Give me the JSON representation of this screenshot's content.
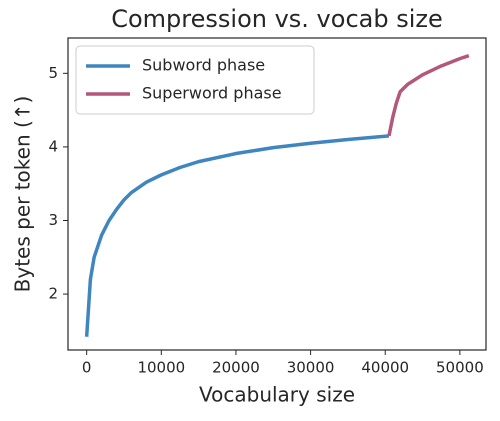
{
  "chart_data": {
    "type": "line",
    "title": "Compression vs. vocab size",
    "x_label": "Vocabulary size",
    "y_label": "Bytes per token (↑)",
    "xlim": [
      -2500,
      53500
    ],
    "ylim": [
      1.24,
      5.48
    ],
    "xticks": [
      0,
      10000,
      20000,
      30000,
      40000,
      50000
    ],
    "yticks": [
      2,
      3,
      4,
      5
    ],
    "legend": "upper left",
    "series": [
      {
        "name": "Subword phase",
        "color": "#3f86c1",
        "x": [
          0,
          500,
          1000,
          2000,
          3000,
          4000,
          5000,
          6000,
          8000,
          10000,
          12500,
          15000,
          20000,
          25000,
          30000,
          35000,
          40500
        ],
        "values": [
          1.42,
          2.2,
          2.5,
          2.8,
          3.0,
          3.15,
          3.28,
          3.38,
          3.52,
          3.62,
          3.72,
          3.8,
          3.91,
          3.99,
          4.05,
          4.1,
          4.15
        ]
      },
      {
        "name": "Superword phase",
        "color": "#b3577b",
        "x": [
          40500,
          41000,
          41500,
          42000,
          43000,
          45000,
          47500,
          50000,
          51200
        ],
        "values": [
          4.15,
          4.4,
          4.6,
          4.75,
          4.85,
          4.98,
          5.1,
          5.2,
          5.24
        ]
      }
    ]
  }
}
